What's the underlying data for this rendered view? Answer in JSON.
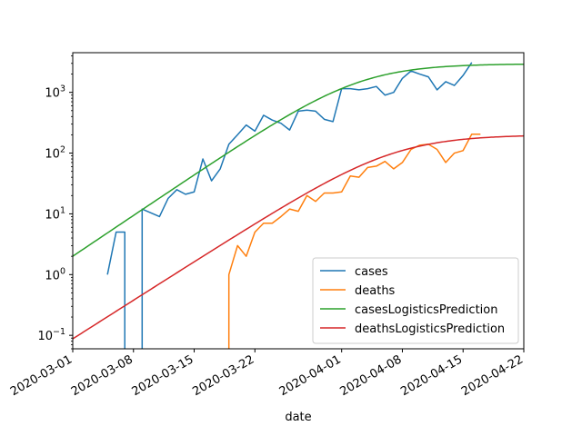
{
  "chart_data": {
    "type": "line",
    "title": "",
    "xlabel": "date",
    "ylabel": "",
    "yscale": "log",
    "xlim": [
      "2020-03-01",
      "2020-04-22"
    ],
    "ylim": [
      0.06,
      4500
    ],
    "x_ticks": [
      {
        "date": "2020-03-01",
        "label": "2020-03-01"
      },
      {
        "date": "2020-03-08",
        "label": "2020-03-08"
      },
      {
        "date": "2020-03-15",
        "label": "2020-03-15"
      },
      {
        "date": "2020-03-22",
        "label": "2020-03-22"
      },
      {
        "date": "2020-04-01",
        "label": "2020-04-01"
      },
      {
        "date": "2020-04-08",
        "label": "2020-04-08"
      },
      {
        "date": "2020-04-15",
        "label": "2020-04-15"
      },
      {
        "date": "2020-04-22",
        "label": "2020-04-22"
      }
    ],
    "y_ticks": [
      {
        "value": 0.1,
        "base": "10",
        "exp": "−1"
      },
      {
        "value": 1,
        "base": "10",
        "exp": "0"
      },
      {
        "value": 10,
        "base": "10",
        "exp": "1"
      },
      {
        "value": 100,
        "base": "10",
        "exp": "2"
      },
      {
        "value": 1000,
        "base": "10",
        "exp": "3"
      }
    ],
    "legend_position": "lower-right",
    "grid": false,
    "series": [
      {
        "name": "cases",
        "color": "#1f77b4",
        "points": [
          [
            "2020-03-05",
            1
          ],
          [
            "2020-03-06",
            5
          ],
          [
            "2020-03-07",
            5
          ],
          [
            "2020-03-07",
            0.01
          ],
          [
            "2020-03-09",
            0.01
          ],
          [
            "2020-03-09",
            12
          ],
          [
            "2020-03-11",
            9
          ],
          [
            "2020-03-12",
            18
          ],
          [
            "2020-03-13",
            25
          ],
          [
            "2020-03-14",
            21
          ],
          [
            "2020-03-15",
            23
          ],
          [
            "2020-03-16",
            80
          ],
          [
            "2020-03-17",
            35
          ],
          [
            "2020-03-18",
            55
          ],
          [
            "2020-03-19",
            140
          ],
          [
            "2020-03-20",
            200
          ],
          [
            "2020-03-21",
            290
          ],
          [
            "2020-03-22",
            230
          ],
          [
            "2020-03-23",
            420
          ],
          [
            "2020-03-24",
            350
          ],
          [
            "2020-03-25",
            310
          ],
          [
            "2020-03-26",
            240
          ],
          [
            "2020-03-27",
            490
          ],
          [
            "2020-03-28",
            510
          ],
          [
            "2020-03-29",
            490
          ],
          [
            "2020-03-30",
            360
          ],
          [
            "2020-03-31",
            330
          ],
          [
            "2020-04-01",
            1150
          ],
          [
            "2020-04-02",
            1150
          ],
          [
            "2020-04-03",
            1100
          ],
          [
            "2020-04-04",
            1150
          ],
          [
            "2020-04-05",
            1250
          ],
          [
            "2020-04-06",
            900
          ],
          [
            "2020-04-07",
            1000
          ],
          [
            "2020-04-08",
            1700
          ],
          [
            "2020-04-09",
            2250
          ],
          [
            "2020-04-10",
            2000
          ],
          [
            "2020-04-11",
            1800
          ],
          [
            "2020-04-12",
            1100
          ],
          [
            "2020-04-13",
            1500
          ],
          [
            "2020-04-14",
            1300
          ],
          [
            "2020-04-15",
            1900
          ],
          [
            "2020-04-16",
            3100
          ]
        ]
      },
      {
        "name": "deaths",
        "color": "#ff7f0e",
        "points": [
          [
            "2020-03-19",
            0.01
          ],
          [
            "2020-03-19",
            1
          ],
          [
            "2020-03-20",
            3
          ],
          [
            "2020-03-21",
            2
          ],
          [
            "2020-03-22",
            5
          ],
          [
            "2020-03-23",
            7
          ],
          [
            "2020-03-24",
            7
          ],
          [
            "2020-03-25",
            9
          ],
          [
            "2020-03-26",
            12
          ],
          [
            "2020-03-27",
            11
          ],
          [
            "2020-03-28",
            20
          ],
          [
            "2020-03-29",
            16
          ],
          [
            "2020-03-30",
            22
          ],
          [
            "2020-03-31",
            22
          ],
          [
            "2020-04-01",
            23
          ],
          [
            "2020-04-02",
            42
          ],
          [
            "2020-04-03",
            40
          ],
          [
            "2020-04-04",
            58
          ],
          [
            "2020-04-05",
            61
          ],
          [
            "2020-04-06",
            73
          ],
          [
            "2020-04-07",
            55
          ],
          [
            "2020-04-08",
            70
          ],
          [
            "2020-04-09",
            115
          ],
          [
            "2020-04-10",
            135
          ],
          [
            "2020-04-11",
            140
          ],
          [
            "2020-04-12",
            115
          ],
          [
            "2020-04-13",
            70
          ],
          [
            "2020-04-14",
            100
          ],
          [
            "2020-04-15",
            110
          ],
          [
            "2020-04-16",
            205
          ],
          [
            "2020-04-17",
            205
          ]
        ]
      },
      {
        "name": "casesLogisticsPrediction",
        "color": "#2ca02c",
        "model": {
          "L": 2950,
          "x0": "2020-04-03",
          "k": 0.221,
          "from": "2020-03-01",
          "to": "2020-04-22"
        }
      },
      {
        "name": "deathsLogisticsPrediction",
        "color": "#d62728",
        "model": {
          "L": 200,
          "x0": "2020-04-07",
          "k": 0.209,
          "from": "2020-03-01",
          "to": "2020-04-22"
        }
      }
    ]
  }
}
